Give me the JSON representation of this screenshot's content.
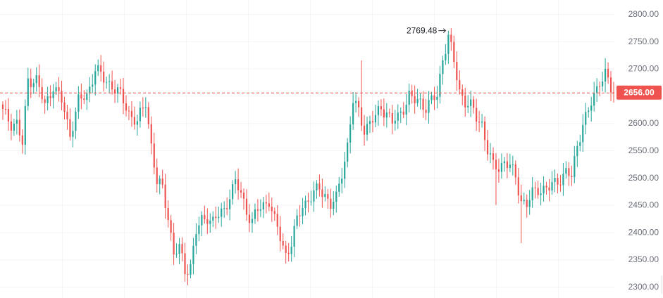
{
  "chart_data": {
    "type": "candlestick",
    "title": "",
    "ylim": [
      2290,
      2820
    ],
    "yticks": [
      "2800.00",
      "2750.00",
      "2700.00",
      "2650.00",
      "2600.00",
      "2550.00",
      "2500.00",
      "2450.00",
      "2400.00",
      "2350.00",
      "2300.00"
    ],
    "ytick_values": [
      2800,
      2750,
      2700,
      2650,
      2600,
      2550,
      2500,
      2450,
      2400,
      2350,
      2300
    ],
    "current_price": 2656.0,
    "current_price_label": "2656.00",
    "high_marker": {
      "value": 2769.48,
      "label": "2769.48"
    },
    "grid": true,
    "up_color": "#26a69a",
    "down_color": "#ef5350",
    "price_line_color": "#ef5350",
    "anchors": [
      [
        0,
        2620
      ],
      [
        3,
        2600
      ],
      [
        5,
        2600
      ],
      [
        7,
        2560
      ],
      [
        9,
        2680
      ],
      [
        12,
        2680
      ],
      [
        15,
        2630
      ],
      [
        18,
        2670
      ],
      [
        21,
        2640
      ],
      [
        24,
        2580
      ],
      [
        27,
        2640
      ],
      [
        30,
        2650
      ],
      [
        33,
        2700
      ],
      [
        36,
        2680
      ],
      [
        39,
        2670
      ],
      [
        42,
        2650
      ],
      [
        45,
        2620
      ],
      [
        48,
        2600
      ],
      [
        51,
        2640
      ],
      [
        53,
        2560
      ],
      [
        55,
        2490
      ],
      [
        57,
        2480
      ],
      [
        59,
        2430
      ],
      [
        61,
        2360
      ],
      [
        63,
        2370
      ],
      [
        65,
        2330
      ],
      [
        67,
        2340
      ],
      [
        69,
        2400
      ],
      [
        71,
        2420
      ],
      [
        73,
        2430
      ],
      [
        75,
        2420
      ],
      [
        77,
        2430
      ],
      [
        79,
        2440
      ],
      [
        81,
        2470
      ],
      [
        83,
        2490
      ],
      [
        85,
        2470
      ],
      [
        87,
        2440
      ],
      [
        89,
        2420
      ],
      [
        91,
        2440
      ],
      [
        93,
        2450
      ],
      [
        95,
        2460
      ],
      [
        97,
        2420
      ],
      [
        99,
        2390
      ],
      [
        101,
        2360
      ],
      [
        103,
        2380
      ],
      [
        105,
        2420
      ],
      [
        107,
        2450
      ],
      [
        109,
        2460
      ],
      [
        111,
        2470
      ],
      [
        113,
        2480
      ],
      [
        115,
        2470
      ],
      [
        117,
        2450
      ],
      [
        119,
        2460
      ],
      [
        121,
        2510
      ],
      [
        123,
        2560
      ],
      [
        125,
        2640
      ],
      [
        127,
        2620
      ],
      [
        129,
        2590
      ],
      [
        131,
        2600
      ],
      [
        133,
        2610
      ],
      [
        135,
        2630
      ],
      [
        137,
        2620
      ],
      [
        139,
        2600
      ],
      [
        141,
        2610
      ],
      [
        143,
        2630
      ],
      [
        145,
        2650
      ],
      [
        147,
        2640
      ],
      [
        149,
        2640
      ],
      [
        151,
        2630
      ],
      [
        153,
        2640
      ],
      [
        155,
        2650
      ],
      [
        157,
        2720
      ],
      [
        159,
        2760
      ],
      [
        161,
        2710
      ],
      [
        163,
        2660
      ],
      [
        165,
        2640
      ],
      [
        167,
        2630
      ],
      [
        169,
        2610
      ],
      [
        171,
        2600
      ],
      [
        173,
        2550
      ],
      [
        175,
        2520
      ],
      [
        177,
        2520
      ],
      [
        179,
        2530
      ],
      [
        181,
        2520
      ],
      [
        183,
        2500
      ],
      [
        185,
        2460
      ],
      [
        187,
        2450
      ],
      [
        189,
        2470
      ],
      [
        191,
        2480
      ],
      [
        193,
        2480
      ],
      [
        195,
        2480
      ],
      [
        197,
        2490
      ],
      [
        199,
        2500
      ],
      [
        201,
        2510
      ],
      [
        203,
        2500
      ],
      [
        205,
        2560
      ],
      [
        207,
        2600
      ],
      [
        209,
        2620
      ],
      [
        211,
        2650
      ],
      [
        213,
        2680
      ],
      [
        215,
        2690
      ],
      [
        217,
        2660
      ],
      [
        218,
        2656
      ]
    ]
  }
}
